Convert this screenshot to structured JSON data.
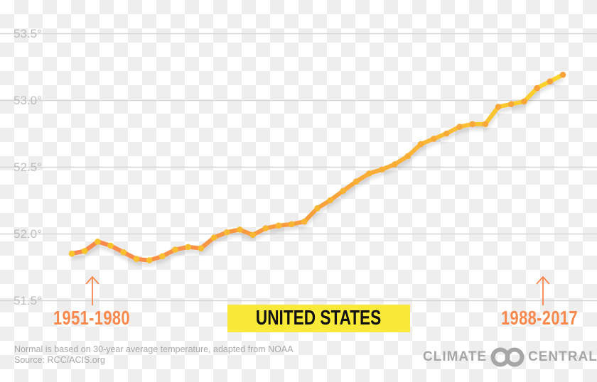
{
  "chart_data": {
    "type": "line",
    "title": "",
    "xlabel": "",
    "ylabel": "",
    "ylim": [
      51.4,
      53.6
    ],
    "yticks": [
      "53.5°",
      "53.0°",
      "52.5°",
      "52.0°",
      "51.5°"
    ],
    "ytick_values": [
      53.5,
      53.0,
      52.5,
      52.0,
      51.5
    ],
    "grid": true,
    "start_label": "1951-1980",
    "end_label": "1988-2017",
    "values": [
      51.85,
      51.87,
      51.94,
      51.91,
      51.86,
      51.81,
      51.8,
      51.83,
      51.88,
      51.9,
      51.89,
      51.97,
      52.01,
      52.03,
      51.99,
      52.04,
      52.06,
      52.07,
      52.09,
      52.19,
      52.25,
      52.32,
      52.39,
      52.45,
      52.48,
      52.52,
      52.58,
      52.67,
      52.71,
      52.75,
      52.8,
      52.82,
      52.82,
      52.95,
      52.97,
      52.99,
      53.09,
      53.14,
      53.19
    ],
    "colors": {
      "line_start": "#f9884c",
      "line_end": "#fbd52c",
      "dot_start": "#f8c52c",
      "dot_end": "#f8a23a",
      "label": "#f9884c",
      "banner": "#f9ea3a"
    }
  },
  "banner": "UNITED STATES",
  "footnote": {
    "line1": "Normal is based on 30-year average temperature, adapted from NOAA",
    "line2": "Source: RCC/ACIS.org"
  },
  "logo": {
    "left": "CLIMATE",
    "right": "CENTRAL"
  }
}
